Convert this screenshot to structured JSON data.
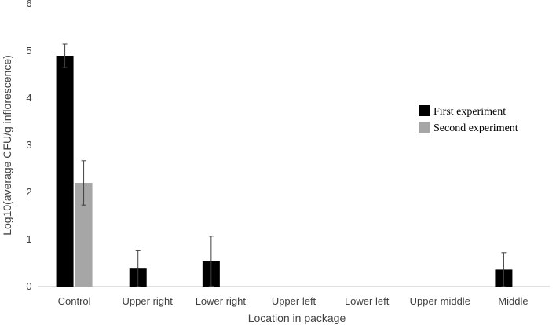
{
  "chart_data": {
    "type": "bar",
    "xlabel": "Location in package",
    "ylabel": "Log10(average CFU/g inflorescence)",
    "ylim": [
      0,
      6
    ],
    "yticks": [
      "0",
      "1",
      "2",
      "3",
      "4",
      "5",
      "6"
    ],
    "grid": false,
    "legend_position": "right",
    "categories": [
      "Control",
      "Upper right",
      "Lower right",
      "Upper left",
      "Lower left",
      "Upper middle",
      "Middle"
    ],
    "series": [
      {
        "name": "First experiment",
        "color": "#000000",
        "values": [
          4.9,
          0.38,
          0.54,
          0,
          0,
          0,
          0.36
        ],
        "error": [
          0.25,
          0.38,
          0.53,
          0,
          0,
          0,
          0.36
        ]
      },
      {
        "name": "Second experiment",
        "color": "#a6a6a6",
        "values": [
          2.2,
          0,
          0,
          0,
          0,
          0,
          0
        ],
        "error": [
          0.47,
          0,
          0,
          0,
          0,
          0,
          0
        ]
      }
    ]
  }
}
